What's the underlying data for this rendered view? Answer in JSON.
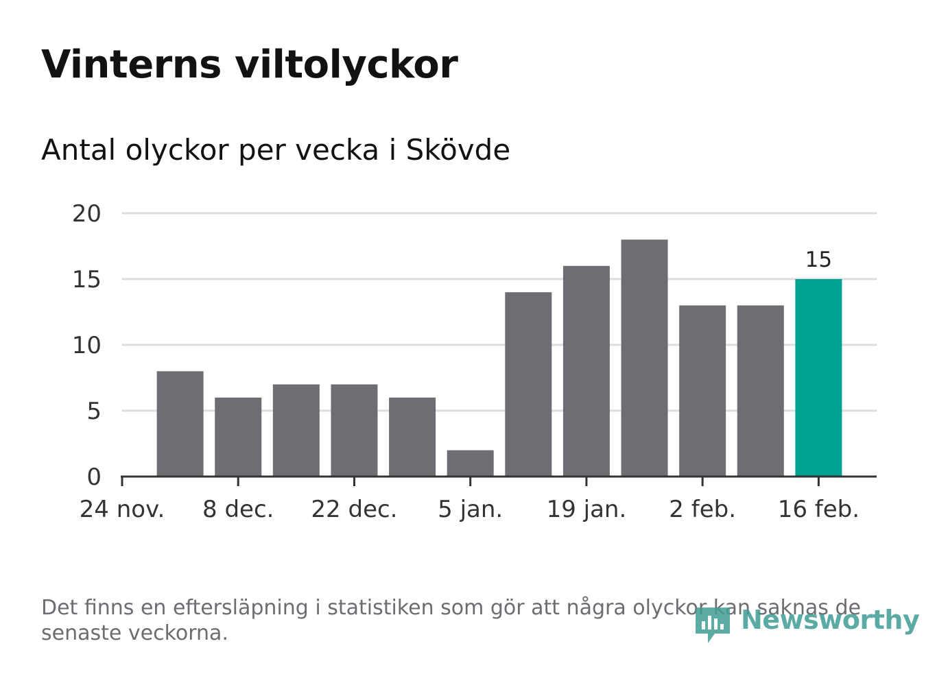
{
  "title": "Vinterns viltolyckor",
  "subtitle": "Antal olyckor per vecka i Skövde",
  "note": "Det finns en eftersläpning i statistiken som gör att några olyckor kan saknas de senaste veckorna.",
  "logo": {
    "text": "Newsworthy"
  },
  "colors": {
    "bar": "#6e6d73",
    "highlight": "#00a296",
    "grid": "#dddddd",
    "axis": "#333333",
    "text": "#333333"
  },
  "chart_data": {
    "type": "bar",
    "title": "Vinterns viltolyckor",
    "subtitle": "Antal olyckor per vecka i Skövde",
    "x_ticks": [
      "24 nov.",
      "8 dec.",
      "22 dec.",
      "5 jan.",
      "19 jan.",
      "2 feb.",
      "16 feb."
    ],
    "values": [
      8,
      6,
      7,
      7,
      6,
      2,
      14,
      16,
      18,
      13,
      13,
      15
    ],
    "highlight_index": 11,
    "data_labels": [
      {
        "index": 11,
        "text": "15"
      }
    ],
    "y_ticks": [
      0,
      5,
      10,
      15,
      20
    ],
    "ylim": [
      0,
      20
    ],
    "grid": true
  }
}
